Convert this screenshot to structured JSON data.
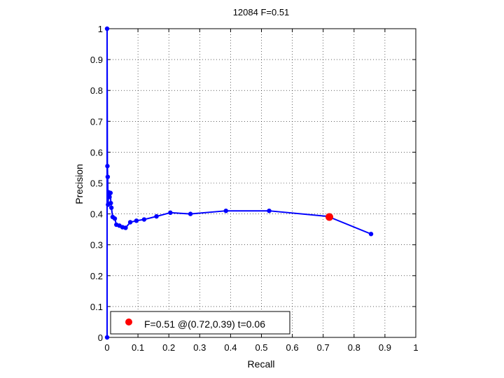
{
  "chart_data": {
    "type": "line",
    "title": "12084 F=0.51",
    "xlabel": "Recall",
    "ylabel": "Precision",
    "xlim": [
      0,
      1
    ],
    "ylim": [
      0,
      1
    ],
    "grid": true,
    "xticks": [
      "0",
      "0.1",
      "0.2",
      "0.3",
      "0.4",
      "0.5",
      "0.6",
      "0.7",
      "0.8",
      "0.9",
      "1"
    ],
    "yticks": [
      "0",
      "0.1",
      "0.2",
      "0.3",
      "0.4",
      "0.5",
      "0.6",
      "0.7",
      "0.8",
      "0.9",
      "1"
    ],
    "series": [
      {
        "color": "#0000ff",
        "marker": "dot",
        "points": [
          [
            0.0,
            0.0
          ],
          [
            0.0,
            1.0
          ],
          [
            0.001,
            0.555
          ],
          [
            0.002,
            0.52
          ],
          [
            0.003,
            0.43
          ],
          [
            0.005,
            0.47
          ],
          [
            0.008,
            0.455
          ],
          [
            0.011,
            0.468
          ],
          [
            0.012,
            0.435
          ],
          [
            0.014,
            0.42
          ],
          [
            0.018,
            0.39
          ],
          [
            0.025,
            0.385
          ],
          [
            0.03,
            0.365
          ],
          [
            0.04,
            0.362
          ],
          [
            0.05,
            0.357
          ],
          [
            0.06,
            0.355
          ],
          [
            0.075,
            0.373
          ],
          [
            0.095,
            0.378
          ],
          [
            0.12,
            0.382
          ],
          [
            0.16,
            0.392
          ],
          [
            0.205,
            0.404
          ],
          [
            0.27,
            0.4
          ],
          [
            0.385,
            0.41
          ],
          [
            0.525,
            0.41
          ],
          [
            0.715,
            0.392
          ],
          [
            0.855,
            0.335
          ]
        ]
      }
    ],
    "highlight": {
      "color": "#ff0000",
      "x": 0.72,
      "y": 0.39
    },
    "legend": {
      "placement": "bottom-left",
      "label": "F=0.51 @(0.72,0.39) t=0.06"
    }
  }
}
